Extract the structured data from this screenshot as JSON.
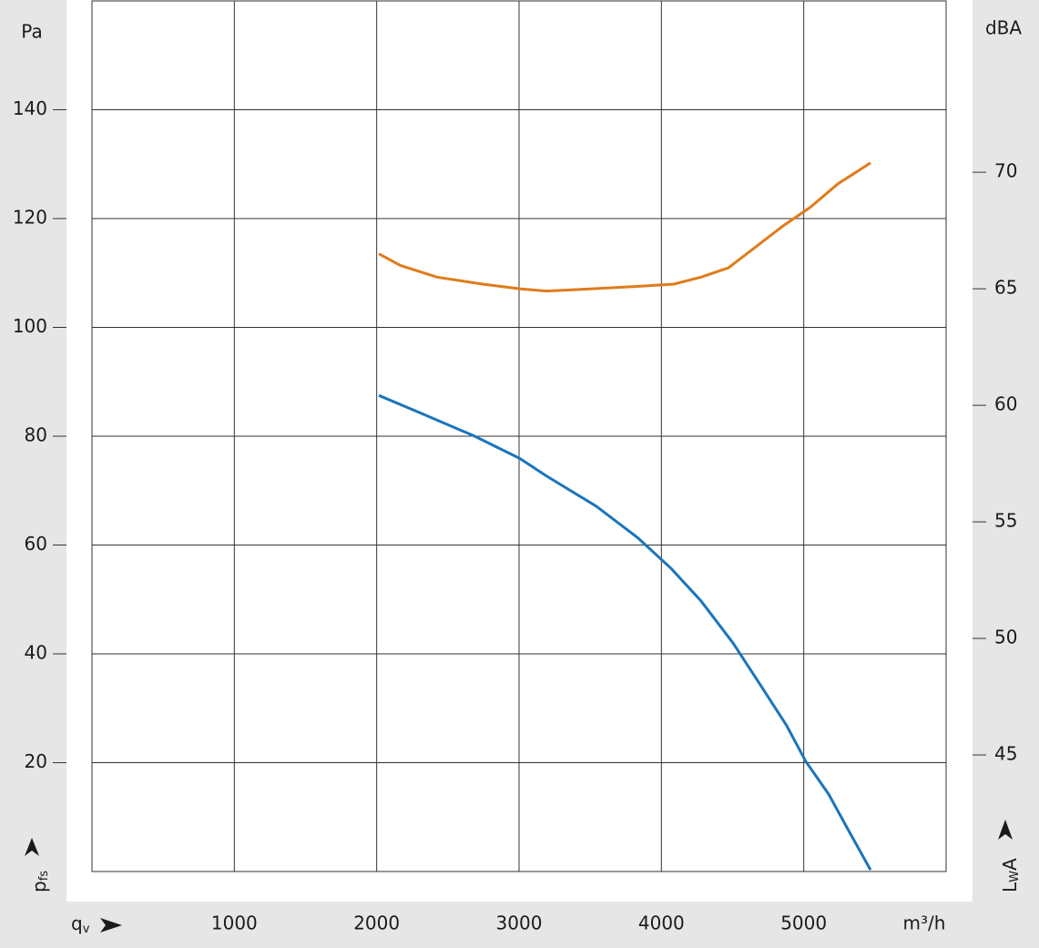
{
  "chart_data": {
    "type": "line",
    "y_unit": "Pa",
    "y2_unit": "dBA",
    "x_unit": "m³/h",
    "y_label": [
      "p",
      "fs"
    ],
    "x_label": [
      "q",
      "v"
    ],
    "y2_label": [
      "L",
      "W",
      "A"
    ],
    "xlim": [
      0,
      6000
    ],
    "xticks": [
      1000,
      2000,
      3000,
      4000,
      5000
    ],
    "ylim": [
      0,
      160
    ],
    "yticks": [
      20,
      40,
      60,
      80,
      100,
      120,
      140
    ],
    "y2lim": [
      40,
      77.35
    ],
    "y2ticks": [
      45,
      50,
      55,
      60,
      65,
      70
    ],
    "grid": true,
    "series": [
      {
        "color": "#1a75bc",
        "x": [
          2015,
          2296,
          2680,
          3006,
          3192,
          3544,
          3831,
          4068,
          4279,
          4503,
          4695,
          4880,
          5015,
          5175,
          5322,
          5469
        ],
        "values": [
          87.5,
          84.4,
          80.1,
          75.9,
          72.7,
          67.1,
          61.4,
          55.7,
          49.7,
          42.0,
          34.3,
          26.8,
          20.2,
          14.2,
          7.2,
          0.3
        ]
      },
      {
        "color": "#e07b1a",
        "axis": "y2",
        "x": [
          2015,
          2168,
          2424,
          2744,
          3006,
          3192,
          3512,
          3831,
          4087,
          4279,
          4471,
          4663,
          4855,
          5047,
          5239,
          5469
        ],
        "values": [
          66.5,
          66.0,
          65.5,
          65.2,
          65.0,
          64.9,
          65.0,
          65.1,
          65.2,
          65.5,
          65.9,
          66.8,
          67.7,
          68.5,
          69.5,
          70.4
        ]
      }
    ]
  }
}
